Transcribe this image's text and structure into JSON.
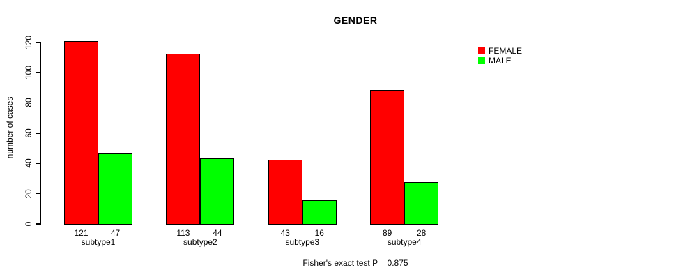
{
  "chart_data": {
    "type": "bar",
    "title": "GENDER",
    "ylabel": "number of cases",
    "xlabel": "",
    "footer": "Fisher's exact test P = 0.875",
    "categories": [
      "subtype1",
      "subtype2",
      "subtype3",
      "subtype4"
    ],
    "series": [
      {
        "name": "FEMALE",
        "color": "#FF0000",
        "values": [
          121,
          113,
          43,
          89
        ]
      },
      {
        "name": "MALE",
        "color": "#00FF00",
        "values": [
          47,
          44,
          16,
          28
        ]
      }
    ],
    "yticks": [
      0,
      20,
      40,
      60,
      80,
      100,
      120
    ],
    "ylim": [
      0,
      120
    ],
    "grid": "off",
    "legend_position": "top-right",
    "bar_border_color": "#000000",
    "background_color": "#FFFFFF"
  }
}
